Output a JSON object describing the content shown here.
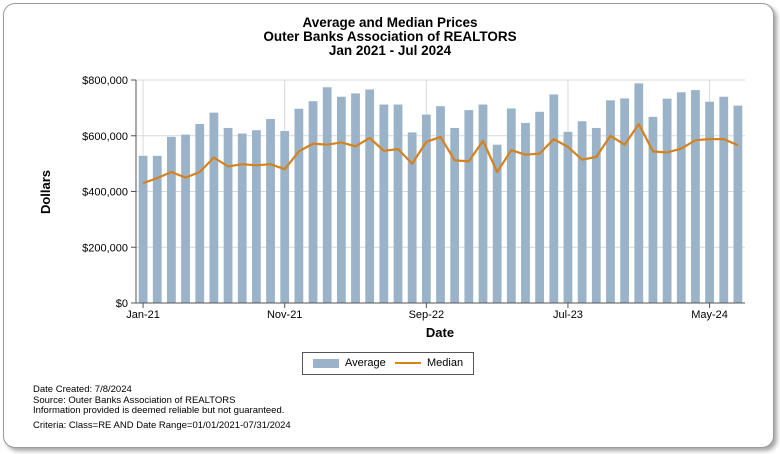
{
  "chart_data": {
    "type": "bar",
    "title": [
      "Average and Median Prices",
      "Outer Banks Association of REALTORS",
      "Jan 2021 - Jul 2024"
    ],
    "xlabel": "Date",
    "ylabel": "Dollars",
    "ylim": [
      0,
      800000
    ],
    "yticks": [
      "$0",
      "$200,000",
      "$400,000",
      "$600,000",
      "$800,000"
    ],
    "ytick_values": [
      0,
      200000,
      400000,
      600000,
      800000
    ],
    "xtick_labels": [
      {
        "index": 0,
        "label": "Jan-21"
      },
      {
        "index": 10,
        "label": "Nov-21"
      },
      {
        "index": 20,
        "label": "Sep-22"
      },
      {
        "index": 30,
        "label": "Jul-23"
      },
      {
        "index": 40,
        "label": "May-24"
      }
    ],
    "categories": [
      "Jan-21",
      "Feb-21",
      "Mar-21",
      "Apr-21",
      "May-21",
      "Jun-21",
      "Jul-21",
      "Aug-21",
      "Sep-21",
      "Oct-21",
      "Nov-21",
      "Dec-21",
      "Jan-22",
      "Feb-22",
      "Mar-22",
      "Apr-22",
      "May-22",
      "Jun-22",
      "Jul-22",
      "Aug-22",
      "Sep-22",
      "Oct-22",
      "Nov-22",
      "Dec-22",
      "Jan-23",
      "Feb-23",
      "Mar-23",
      "Apr-23",
      "May-23",
      "Jun-23",
      "Jul-23",
      "Aug-23",
      "Sep-23",
      "Oct-23",
      "Nov-23",
      "Dec-23",
      "Jan-24",
      "Feb-24",
      "Mar-24",
      "Apr-24",
      "May-24",
      "Jun-24",
      "Jul-24"
    ],
    "series": [
      {
        "name": "Average",
        "kind": "bar",
        "color": "#9ab3c8",
        "values": [
          528000,
          528000,
          596000,
          604000,
          642000,
          683000,
          628000,
          608000,
          620000,
          660000,
          617000,
          697000,
          724000,
          774000,
          740000,
          752000,
          766000,
          712000,
          712000,
          612000,
          676000,
          706000,
          628000,
          692000,
          712000,
          568000,
          698000,
          646000,
          686000,
          748000,
          614000,
          652000,
          628000,
          727000,
          734000,
          788000,
          668000,
          733000,
          756000,
          764000,
          722000,
          740000,
          708000
        ]
      },
      {
        "name": "Median",
        "kind": "line",
        "color": "#d4821e",
        "values": [
          430000,
          448000,
          470000,
          450000,
          470000,
          522000,
          490000,
          498000,
          494000,
          498000,
          480000,
          544000,
          572000,
          568000,
          576000,
          562000,
          592000,
          546000,
          552000,
          500000,
          578000,
          596000,
          512000,
          508000,
          582000,
          470000,
          548000,
          532000,
          536000,
          588000,
          560000,
          514000,
          524000,
          600000,
          568000,
          642000,
          544000,
          540000,
          554000,
          584000,
          588000,
          588000,
          566000
        ]
      }
    ]
  },
  "legend": {
    "average_label": "Average",
    "median_label": "Median"
  },
  "footer": {
    "date_created": "Date Created: 7/8/2024",
    "source": "Source: Outer Banks Association of REALTORS",
    "disclaimer": "Information provided is deemed reliable but not guaranteed.",
    "criteria": "Criteria: Class=RE AND Date Range=01/01/2021-07/31/2024"
  }
}
